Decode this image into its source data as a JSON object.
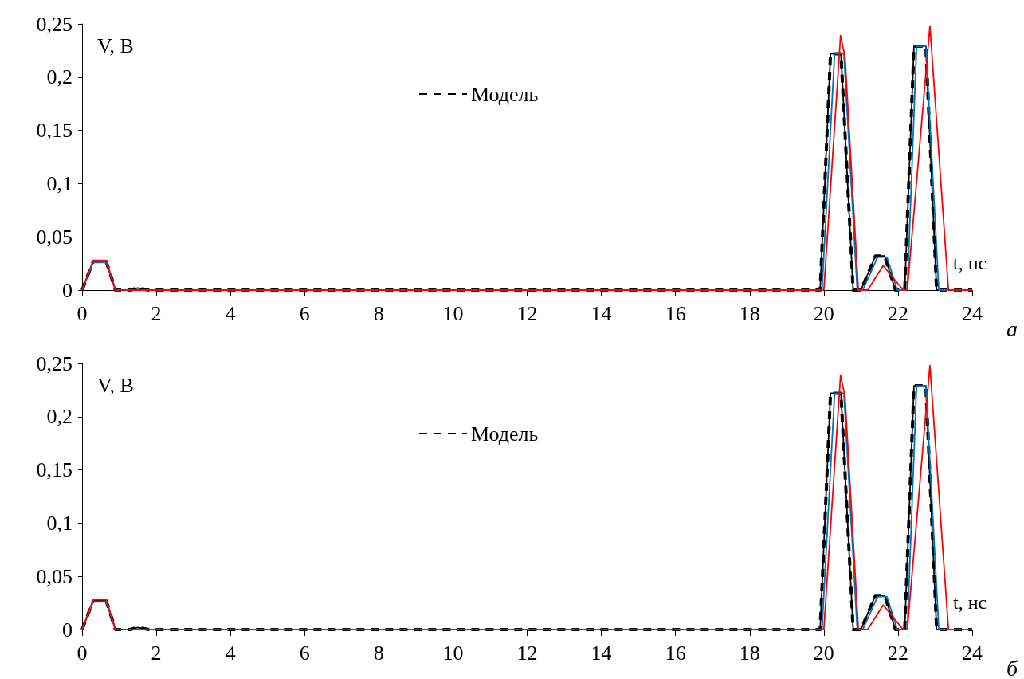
{
  "chart_data": [
    {
      "type": "line",
      "xlabel": "t, нс",
      "ylabel": "V, В",
      "annotations": [
        "а"
      ],
      "xlim": [
        0,
        24
      ],
      "ylim": [
        0,
        0.25
      ],
      "xticks": [
        0,
        2,
        4,
        6,
        8,
        10,
        12,
        14,
        16,
        18,
        20,
        22,
        24
      ],
      "yticks": [
        0,
        {
          "value": 0.05,
          "label": "0,05"
        },
        {
          "value": 0.1,
          "label": "0,1"
        },
        {
          "value": 0.15,
          "label": "0,15"
        },
        {
          "value": 0.2,
          "label": "0,2"
        },
        {
          "value": 0.25,
          "label": "0,25"
        }
      ],
      "grid": false,
      "legend": "top",
      "marker": "none",
      "series": [
        {
          "name": "Модель",
          "color": "#000000",
          "line_style": "dashed",
          "x": [
            0,
            0.3,
            0.65,
            0.9,
            1.3,
            1.5,
            1.8,
            19.9,
            20.18,
            20.46,
            20.79,
            21.0,
            21.39,
            21.64,
            21.93,
            22.18,
            22.43,
            22.75,
            23.04,
            24
          ],
          "values": [
            0,
            0.027,
            0.027,
            0,
            0,
            0.002,
            0,
            0,
            0.222,
            0.222,
            0,
            0,
            0.032,
            0.032,
            0,
            0,
            0.229,
            0.229,
            0,
            0
          ]
        },
        {
          "color": "#000000",
          "line_style": "solid",
          "x": [
            0,
            0.3,
            0.65,
            0.9,
            1.3,
            1.5,
            1.8,
            19.9,
            20.18,
            20.46,
            20.79,
            21.0,
            21.39,
            21.64,
            21.93,
            22.18,
            22.43,
            22.75,
            23.04,
            24
          ],
          "values": [
            0,
            0.027,
            0.027,
            0,
            0,
            0.002,
            0,
            0,
            0.222,
            0.222,
            0,
            0,
            0.032,
            0.032,
            0,
            0,
            0.229,
            0.229,
            0,
            0
          ]
        },
        {
          "color": "#0070c0",
          "line_style": "solid",
          "x": [
            0,
            0.3,
            0.65,
            0.9,
            19.95,
            20.29,
            20.54,
            20.9,
            21.05,
            21.45,
            21.7,
            21.98,
            22.25,
            22.5,
            22.75,
            23.1,
            24
          ],
          "values": [
            0,
            0.026,
            0.026,
            0,
            0,
            0.222,
            0.222,
            0,
            0,
            0.031,
            0.031,
            0,
            0,
            0.229,
            0.229,
            0,
            0
          ]
        },
        {
          "color": "#ff0000",
          "line_style": "solid",
          "x": [
            0,
            0.3,
            0.65,
            0.9,
            20.0,
            20.45,
            20.57,
            20.93,
            21.18,
            21.6,
            22.14,
            22.25,
            22.86,
            23.36,
            24
          ],
          "values": [
            0,
            0.028,
            0.028,
            0,
            0,
            0.239,
            0.219,
            0,
            0,
            0.023,
            0,
            0,
            0.248,
            0,
            0
          ]
        }
      ]
    },
    {
      "type": "line",
      "xlabel": "t, нс",
      "ylabel": "V, В",
      "annotations": [
        "б"
      ],
      "xlim": [
        0,
        24
      ],
      "ylim": [
        0,
        0.25
      ],
      "xticks": [
        0,
        2,
        4,
        6,
        8,
        10,
        12,
        14,
        16,
        18,
        20,
        22,
        24
      ],
      "yticks": [
        0,
        {
          "value": 0.05,
          "label": "0,05"
        },
        {
          "value": 0.1,
          "label": "0,1"
        },
        {
          "value": 0.15,
          "label": "0,15"
        },
        {
          "value": 0.2,
          "label": "0,2"
        },
        {
          "value": 0.25,
          "label": "0,25"
        }
      ],
      "grid": false,
      "legend": "top",
      "marker": "none",
      "series": [
        {
          "name": "Модель",
          "color": "#000000",
          "line_style": "dashed",
          "x": [
            0,
            0.3,
            0.65,
            0.9,
            1.3,
            1.5,
            1.8,
            19.9,
            20.18,
            20.46,
            20.79,
            21.0,
            21.39,
            21.64,
            21.93,
            22.18,
            22.43,
            22.75,
            23.04,
            24
          ],
          "values": [
            0,
            0.027,
            0.027,
            0,
            0,
            0.002,
            0,
            0,
            0.222,
            0.222,
            0,
            0,
            0.032,
            0.032,
            0,
            0,
            0.229,
            0.229,
            0,
            0
          ]
        },
        {
          "color": "#000000",
          "line_style": "solid",
          "x": [
            0,
            0.3,
            0.65,
            0.9,
            1.3,
            1.5,
            1.8,
            19.9,
            20.18,
            20.46,
            20.79,
            21.0,
            21.39,
            21.64,
            21.93,
            22.18,
            22.43,
            22.75,
            23.04,
            24
          ],
          "values": [
            0,
            0.027,
            0.027,
            0,
            0,
            0.002,
            0,
            0,
            0.222,
            0.222,
            0,
            0,
            0.032,
            0.032,
            0,
            0,
            0.229,
            0.229,
            0,
            0
          ]
        },
        {
          "color": "#0070c0",
          "line_style": "solid",
          "x": [
            0,
            0.3,
            0.65,
            0.9,
            19.95,
            20.29,
            20.54,
            20.9,
            21.05,
            21.45,
            21.7,
            21.98,
            22.25,
            22.5,
            22.75,
            23.1,
            24
          ],
          "values": [
            0,
            0.026,
            0.026,
            0,
            0,
            0.222,
            0.222,
            0,
            0,
            0.031,
            0.031,
            0,
            0,
            0.229,
            0.229,
            0,
            0
          ]
        },
        {
          "color": "#ff0000",
          "line_style": "solid",
          "x": [
            0,
            0.3,
            0.65,
            0.9,
            20.0,
            20.45,
            20.57,
            20.93,
            21.18,
            21.6,
            22.14,
            22.25,
            22.86,
            23.36,
            24
          ],
          "values": [
            0,
            0.028,
            0.028,
            0,
            0,
            0.239,
            0.219,
            0,
            0,
            0.023,
            0,
            0,
            0.248,
            0,
            0
          ]
        }
      ]
    }
  ]
}
